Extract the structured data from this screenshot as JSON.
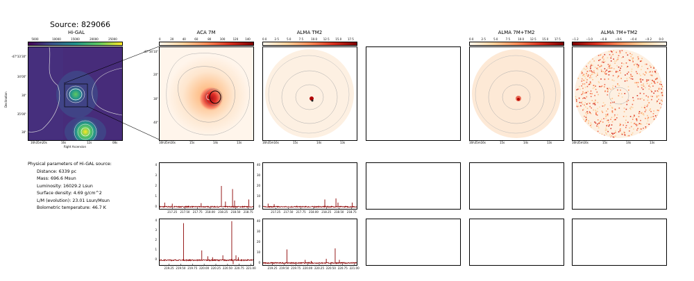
{
  "source_title": "Source: 829066",
  "colors": {
    "spectrum": "#8b0000",
    "frame": "#000000",
    "contour": "#aaaaaa"
  },
  "panels": {
    "higal": {
      "title": "Hi-GAL",
      "cbar_ticks": [
        "5000",
        "10000",
        "15000",
        "20000",
        "25000"
      ],
      "y_ticks": [
        "-47°33'30\"",
        "34'00\"",
        "30\"",
        "35'00\"",
        "30\""
      ],
      "ylabel": "Declination",
      "x_ticks": [
        "16h35m20s",
        "16s",
        "12s",
        "08s"
      ],
      "xlabel": "Right Ascension"
    },
    "aca7m": {
      "title": "ACA 7M",
      "cbar_ticks": [
        "0",
        "20",
        "40",
        "60",
        "80",
        "100",
        "120",
        "140"
      ],
      "y_ticks": [
        "-47°34'10\"",
        "20\"",
        "30\"",
        "40\""
      ],
      "x_ticks": [
        "16h35m16s",
        "15s",
        "14s",
        "13s"
      ]
    },
    "almatm2": {
      "title": "ALMA TM2",
      "cbar_ticks": [
        "0.0",
        "2.5",
        "5.0",
        "7.5",
        "10.0",
        "12.5",
        "15.0",
        "17.5"
      ],
      "x_ticks": [
        "16h35m16s",
        "15s",
        "14s",
        "13s"
      ]
    },
    "alma7mtm2": {
      "title": "ALMA 7M+TM2",
      "cbar_ticks": [
        "0.0",
        "2.5",
        "5.0",
        "7.5",
        "10.0",
        "12.5",
        "15.0",
        "17.5"
      ],
      "x_ticks": [
        "16h35m16s",
        "15s",
        "14s",
        "13s"
      ]
    },
    "alma7mtm2_neg": {
      "title": "ALMA 7M+TM2",
      "cbar_ticks": [
        "−1.2",
        "−1.0",
        "−0.8",
        "−0.6",
        "−0.4",
        "−0.2",
        "0.0"
      ],
      "x_ticks": [
        "16h35m16s",
        "15s",
        "14s",
        "13s"
      ]
    }
  },
  "params": {
    "heading": "Physical parameters of Hi-GAL source:",
    "distance": "Distance: 6339 pc",
    "mass": "Mass: 696.6 Msun",
    "luminosity": "Luminosity: 16029.2 Lsun",
    "surface_density": "Surface density: 4.69 g/cm^2",
    "lm": "L/M (evolution): 23.01 Lsun/Msun",
    "tbol": "Bolometric temperature: 46.7 K"
  },
  "chart_data": [
    {
      "type": "line",
      "name": "spectrum-aca-1",
      "x_ticks": [
        "217.25",
        "217.50",
        "217.75",
        "218.00",
        "218.25",
        "218.50",
        "218.75"
      ],
      "y_ticks": [
        "0",
        "1",
        "2",
        "3",
        "4"
      ],
      "xlim": [
        217.0,
        218.85
      ],
      "ylim": [
        -0.2,
        4.2
      ],
      "peaks": [
        [
          217.1,
          0.4
        ],
        [
          217.25,
          0.3
        ],
        [
          217.82,
          0.35
        ],
        [
          218.22,
          2.0
        ],
        [
          218.3,
          0.5
        ],
        [
          218.44,
          1.7
        ],
        [
          218.48,
          0.6
        ],
        [
          218.76,
          0.7
        ]
      ]
    },
    {
      "type": "line",
      "name": "spectrum-tm2-1",
      "x_ticks": [
        "217.25",
        "217.50",
        "217.75",
        "218.00",
        "218.25",
        "218.50",
        "218.75"
      ],
      "y_ticks": [
        "0",
        "10",
        "20",
        "30",
        "40"
      ],
      "xlim": [
        217.0,
        218.85
      ],
      "ylim": [
        -2,
        42
      ],
      "peaks": [
        [
          217.1,
          3
        ],
        [
          217.22,
          2.5
        ],
        [
          218.22,
          7
        ],
        [
          218.44,
          8
        ],
        [
          218.48,
          4
        ],
        [
          218.76,
          4
        ]
      ]
    },
    {
      "type": "line",
      "name": "spectrum-aca-2",
      "x_ticks": [
        "219.25",
        "219.50",
        "219.75",
        "220.00",
        "220.25",
        "220.50",
        "220.75",
        "221.00"
      ],
      "y_ticks": [
        "0",
        "1",
        "2",
        "3",
        "4"
      ],
      "xlim": [
        219.05,
        221.05
      ],
      "ylim": [
        -0.5,
        4.2
      ],
      "peaks": [
        [
          219.56,
          3.8
        ],
        [
          219.95,
          1.0
        ],
        [
          220.08,
          0.4
        ],
        [
          220.18,
          0.3
        ],
        [
          220.4,
          0.5
        ],
        [
          220.59,
          4.0
        ],
        [
          220.68,
          0.5
        ],
        [
          220.73,
          0.3
        ]
      ],
      "dips": [
        [
          220.62,
          -0.4
        ]
      ]
    },
    {
      "type": "line",
      "name": "spectrum-tm2-2",
      "x_ticks": [
        "219.25",
        "219.50",
        "219.75",
        "220.00",
        "220.25",
        "220.50",
        "220.75",
        "221.00"
      ],
      "y_ticks": [
        "0",
        "10",
        "20",
        "30",
        "40"
      ],
      "xlim": [
        219.05,
        221.05
      ],
      "ylim": [
        -2,
        42
      ],
      "peaks": [
        [
          219.56,
          13
        ],
        [
          219.95,
          3
        ],
        [
          220.08,
          2
        ],
        [
          220.4,
          4
        ],
        [
          220.59,
          14
        ],
        [
          220.68,
          3
        ]
      ]
    }
  ]
}
